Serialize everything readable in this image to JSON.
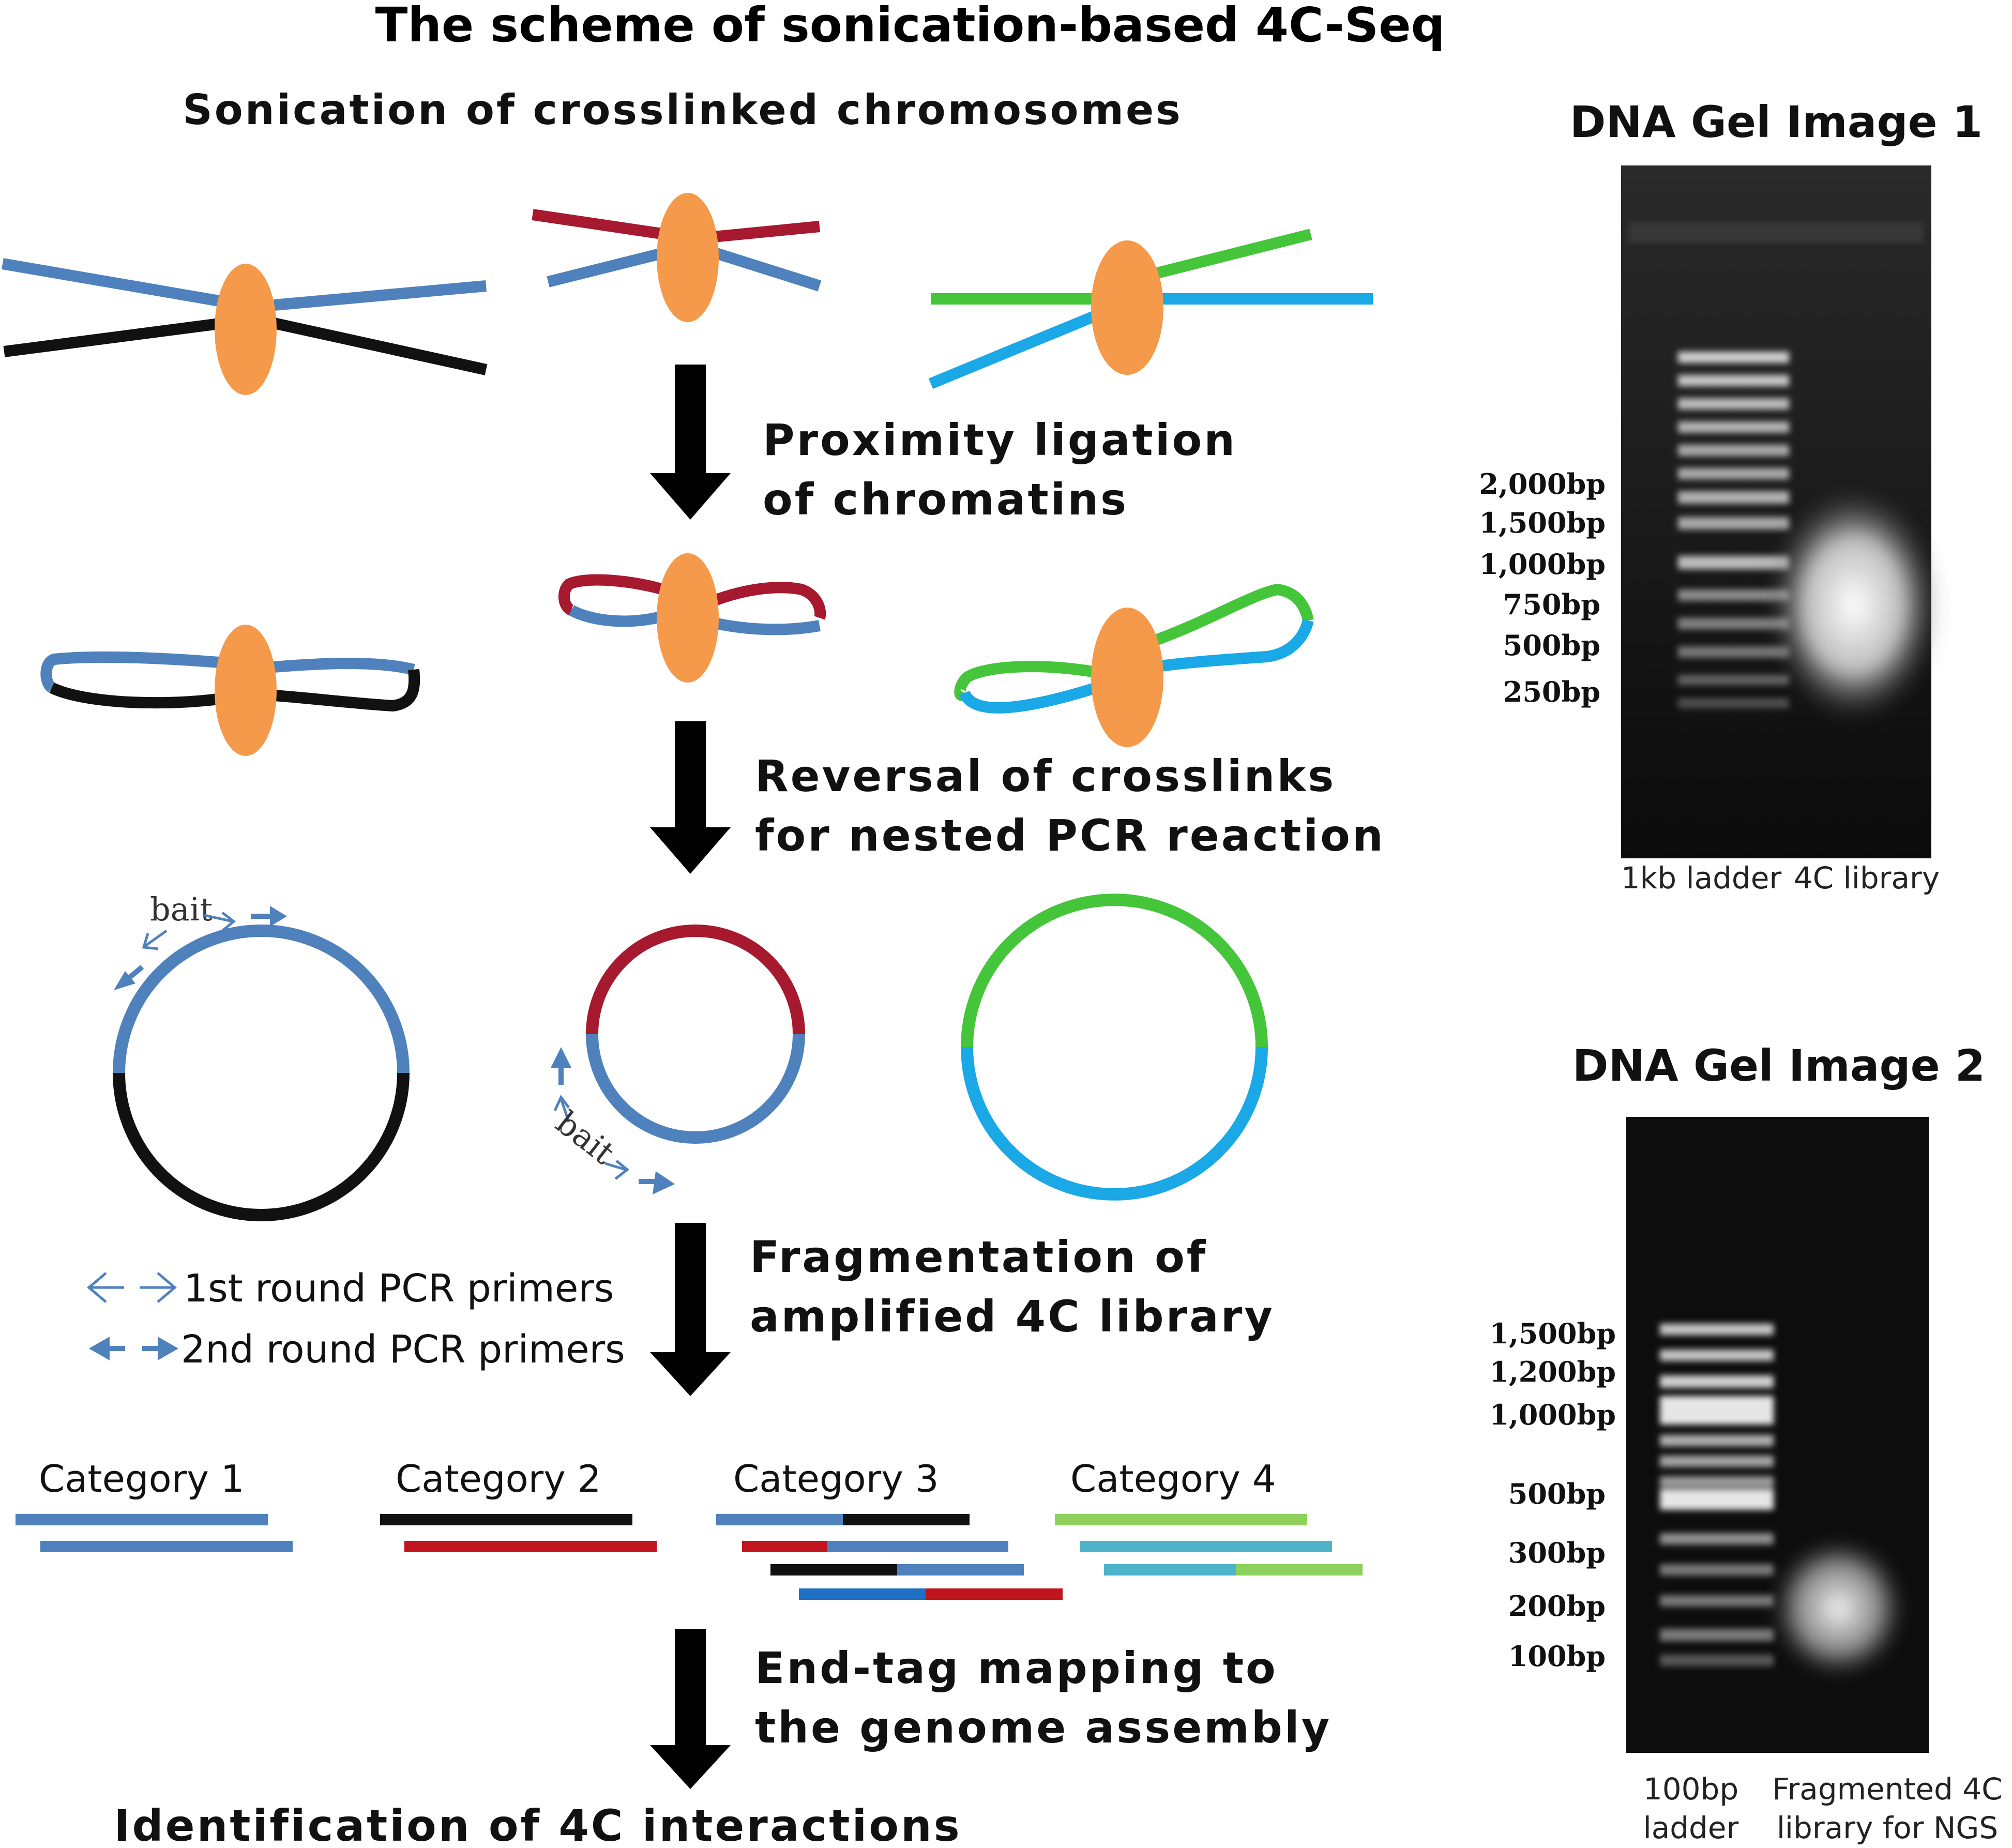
{
  "title": "The scheme of sonication-based 4C-Seq",
  "subtitle": "Sonication of crosslinked chromosomes",
  "steps": [
    {
      "line1": "Proximity ligation",
      "line2": "of chromatins"
    },
    {
      "line1": "Reversal of crosslinks",
      "line2": "for nested PCR reaction"
    },
    {
      "line1": "Fragmentation of",
      "line2": "amplified 4C library"
    },
    {
      "line1": "End-tag mapping to",
      "line2": "the genome assembly"
    }
  ],
  "final_step": "Identification of 4C interactions",
  "bait_label": "bait",
  "legend": {
    "first_round": "1st round PCR primers",
    "second_round": "2nd round PCR primers"
  },
  "categories": [
    "Category 1",
    "Category 2",
    "Category 3",
    "Category 4"
  ],
  "gel1": {
    "title": "DNA Gel Image 1",
    "markers": [
      "2,000bp",
      "1,500bp",
      "1,000bp",
      "750bp",
      "500bp",
      "250bp"
    ],
    "lanes": [
      "1kb ladder",
      "4C library"
    ]
  },
  "gel2": {
    "title": "DNA Gel Image 2",
    "markers": [
      "1,500bp",
      "1,200bp",
      "1,000bp",
      "500bp",
      "300bp",
      "200bp",
      "100bp"
    ],
    "lanes": {
      "ladder_line1": "100bp",
      "ladder_line2": "ladder",
      "sample_line1": "Fragmented 4C",
      "sample_line2": "library for NGS"
    }
  },
  "colors": {
    "blue": "#4f81bd",
    "black": "#111111",
    "red": "#a6192e",
    "green": "#45c53a",
    "cyan": "#1aa8e6",
    "protein": "#f49a4a",
    "arrow": "#000000"
  }
}
